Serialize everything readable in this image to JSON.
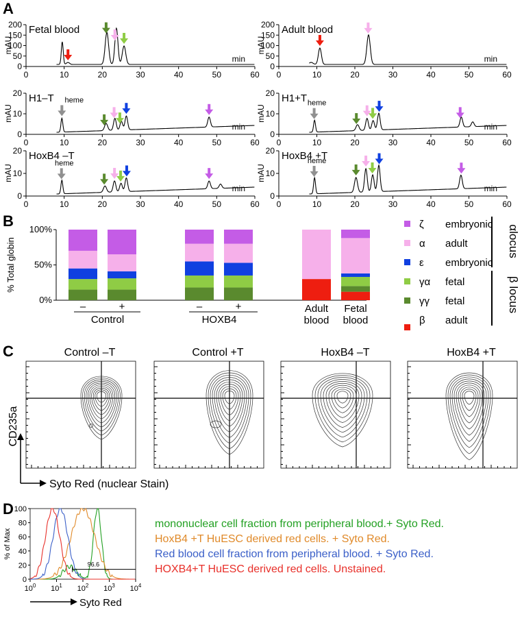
{
  "panels": {
    "A": "A",
    "B": "B",
    "C": "C",
    "D": "D"
  },
  "colors": {
    "zeta": "#c45ce6",
    "alpha": "#f6b0ea",
    "epsilon": "#1040e0",
    "gamma_a": "#8fcc45",
    "gamma_g": "#5a8a2e",
    "beta": "#ee1e10",
    "heme": "#909090",
    "legend_line": "#000000"
  },
  "hplc": {
    "ylabel": "mAU",
    "xlabel": "min",
    "x_ticks": [
      "0",
      "10",
      "20",
      "30",
      "40",
      "50",
      "60"
    ],
    "y_ticks_full": [
      "200",
      "150",
      "100",
      "50",
      "0"
    ],
    "y_ticks_short": [
      "20",
      "10",
      "0"
    ],
    "heme_label": "heme",
    "traces": [
      {
        "title": "Fetal blood",
        "heme": false,
        "peaks": [
          {
            "x": 9.5,
            "h": 0.55,
            "w": 0.25
          },
          {
            "x": 11,
            "h": 0.05,
            "w": 0.4
          },
          {
            "x": 21.2,
            "h": 0.78,
            "w": 0.45
          },
          {
            "x": 23.7,
            "h": 0.88,
            "w": 0.4
          },
          {
            "x": 25.7,
            "h": 0.45,
            "w": 0.45
          }
        ],
        "arrows": [
          {
            "x": 11,
            "c": "beta"
          },
          {
            "x": 21,
            "c": "gamma_g"
          },
          {
            "x": 23.3,
            "c": "alpha"
          },
          {
            "x": 25.7,
            "c": "gamma_a"
          }
        ]
      },
      {
        "title": "Adult blood",
        "heme": false,
        "peaks": [
          {
            "x": 8.5,
            "h": 0.05,
            "w": 0.5
          },
          {
            "x": 10.8,
            "h": 0.4,
            "w": 0.4
          },
          {
            "x": 23.6,
            "h": 0.72,
            "w": 0.45
          }
        ],
        "arrows": [
          {
            "x": 10.8,
            "c": "beta"
          },
          {
            "x": 23.5,
            "c": "alpha"
          }
        ]
      },
      {
        "title": "H1–T",
        "heme": true,
        "peaks": [
          {
            "x": 9.4,
            "h": 0.35,
            "w": 0.25
          },
          {
            "x": 21,
            "h": 0.18,
            "w": 0.4
          },
          {
            "x": 23.3,
            "h": 0.3,
            "w": 0.35
          },
          {
            "x": 25,
            "h": 0.22,
            "w": 0.35
          },
          {
            "x": 26.3,
            "h": 0.35,
            "w": 0.35
          },
          {
            "x": 48,
            "h": 0.25,
            "w": 0.35
          }
        ],
        "arrows": [
          {
            "x": 9.4,
            "c": "heme"
          },
          {
            "x": 20.5,
            "c": "gamma_g"
          },
          {
            "x": 23.1,
            "c": "alpha"
          },
          {
            "x": 24.6,
            "c": "gamma_a"
          },
          {
            "x": 26.3,
            "c": "epsilon"
          },
          {
            "x": 48,
            "c": "zeta"
          }
        ]
      },
      {
        "title": "H1+T",
        "heme": true,
        "peaks": [
          {
            "x": 9.4,
            "h": 0.3,
            "w": 0.25
          },
          {
            "x": 20.7,
            "h": 0.15,
            "w": 0.4
          },
          {
            "x": 23.2,
            "h": 0.3,
            "w": 0.35
          },
          {
            "x": 24.8,
            "h": 0.24,
            "w": 0.35
          },
          {
            "x": 26.3,
            "h": 0.42,
            "w": 0.35
          },
          {
            "x": 48,
            "h": 0.25,
            "w": 0.35
          },
          {
            "x": 51,
            "h": 0.12,
            "w": 0.35
          }
        ],
        "arrows": [
          {
            "x": 9.3,
            "c": "heme"
          },
          {
            "x": 20.4,
            "c": "gamma_g"
          },
          {
            "x": 23.2,
            "c": "alpha"
          },
          {
            "x": 24.7,
            "c": "gamma_a"
          },
          {
            "x": 26.4,
            "c": "epsilon"
          },
          {
            "x": 47.7,
            "c": "zeta"
          }
        ]
      },
      {
        "title": "HoxB4 –T",
        "heme": true,
        "peaks": [
          {
            "x": 9.4,
            "h": 0.32,
            "w": 0.25
          },
          {
            "x": 20.7,
            "h": 0.15,
            "w": 0.4
          },
          {
            "x": 23.2,
            "h": 0.26,
            "w": 0.35
          },
          {
            "x": 24.9,
            "h": 0.2,
            "w": 0.35
          },
          {
            "x": 26.3,
            "h": 0.32,
            "w": 0.35
          },
          {
            "x": 48,
            "h": 0.18,
            "w": 0.35
          },
          {
            "x": 51,
            "h": 0.1,
            "w": 0.35
          }
        ],
        "arrows": [
          {
            "x": 9.3,
            "c": "heme"
          },
          {
            "x": 20.5,
            "c": "gamma_g"
          },
          {
            "x": 23.2,
            "c": "alpha"
          },
          {
            "x": 24.8,
            "c": "gamma_a"
          },
          {
            "x": 26.4,
            "c": "epsilon"
          },
          {
            "x": 48,
            "c": "zeta"
          }
        ]
      },
      {
        "title": "HoxB4 +T",
        "heme": true,
        "peaks": [
          {
            "x": 9.4,
            "h": 0.38,
            "w": 0.25
          },
          {
            "x": 20.3,
            "h": 0.35,
            "w": 0.4
          },
          {
            "x": 22.9,
            "h": 0.55,
            "w": 0.35
          },
          {
            "x": 24.7,
            "h": 0.4,
            "w": 0.35
          },
          {
            "x": 26.3,
            "h": 0.62,
            "w": 0.35
          },
          {
            "x": 47.9,
            "h": 0.32,
            "w": 0.35
          }
        ],
        "arrows": [
          {
            "x": 9.3,
            "c": "heme"
          },
          {
            "x": 20.3,
            "c": "gamma_g"
          },
          {
            "x": 22.9,
            "c": "alpha"
          },
          {
            "x": 24.6,
            "c": "gamma_a"
          },
          {
            "x": 26.4,
            "c": "epsilon"
          },
          {
            "x": 48,
            "c": "zeta"
          }
        ]
      }
    ]
  },
  "chart_data": {
    "type": "bar",
    "ylabel": "% Total globin",
    "y_ticks": [
      "100%",
      "50%",
      "0%"
    ],
    "ylim": [
      0,
      100
    ],
    "categories": [
      "–",
      "+",
      "–",
      "+",
      "Adult blood",
      "Fetal blood"
    ],
    "groups": [
      {
        "label": "Control",
        "bars": [
          0,
          1
        ]
      },
      {
        "label": "HOXB4",
        "bars": [
          2,
          3
        ]
      },
      {
        "label": "Adult blood",
        "lines": [
          "Adult",
          "blood"
        ],
        "bars": [
          4
        ]
      },
      {
        "label": "Fetal blood",
        "lines": [
          "Fetal",
          "blood"
        ],
        "bars": [
          5
        ]
      }
    ],
    "series": [
      {
        "name": "β adult",
        "key": "beta",
        "values": [
          0,
          0,
          0,
          0,
          30,
          12
        ]
      },
      {
        "name": "γγ fetal",
        "key": "gamma_g",
        "values": [
          15,
          15,
          18,
          18,
          0,
          8
        ]
      },
      {
        "name": "γα fetal",
        "key": "gamma_a",
        "values": [
          15,
          16,
          17,
          17,
          0,
          13
        ]
      },
      {
        "name": "ε embryonic",
        "key": "epsilon",
        "values": [
          15,
          10,
          20,
          18,
          0,
          5
        ]
      },
      {
        "name": "α adult",
        "key": "alpha",
        "values": [
          25,
          24,
          25,
          27,
          70,
          50
        ]
      },
      {
        "name": "ζ embryonic",
        "key": "zeta",
        "values": [
          30,
          35,
          20,
          20,
          0,
          12
        ]
      }
    ],
    "legend": [
      {
        "sym": "ζ",
        "text": "embryonic",
        "key": "zeta"
      },
      {
        "sym": "α",
        "text": "adult",
        "key": "alpha"
      },
      {
        "sym": "ε",
        "text": "embryonic",
        "key": "epsilon"
      },
      {
        "sym": "γα",
        "text": "fetal",
        "key": "gamma_a"
      },
      {
        "sym": "γγ",
        "text": "fetal",
        "key": "gamma_g"
      },
      {
        "sym": "β",
        "text": "adult",
        "key": "beta"
      }
    ],
    "alpha_locus": "αlocus",
    "beta_locus": "β locus"
  },
  "flow": {
    "titles": [
      "Control –T",
      "Control +T",
      "HoxB4 –T",
      "HoxB4 +T"
    ],
    "ylabel": "CD235a",
    "xlabel": "Syto Red (nuclear Stain)"
  },
  "histogram": {
    "ylabel": "% of Max",
    "xlabel": "Syto Red",
    "y_ticks": [
      "100",
      "80",
      "60",
      "40",
      "20",
      "0"
    ],
    "x_ticks": [
      {
        "base": "10",
        "exp": "0"
      },
      {
        "base": "10",
        "exp": "1"
      },
      {
        "base": "10",
        "exp": "2"
      },
      {
        "base": "10",
        "exp": "3"
      },
      {
        "base": "10",
        "exp": "4"
      }
    ],
    "gate_label": "96.6",
    "series": [
      {
        "name": "mononuclear cell fraction from peripheral blood.+ Syto Red.",
        "color": "#22a022",
        "center": 2.55,
        "sd": 0.15,
        "bump": 1.5,
        "bumph": 0.18
      },
      {
        "name": "HoxB4 +T HuESC derived red cells. + Syto Red.",
        "color": "#e08a2a",
        "center": 2.0,
        "sd": 0.45,
        "bump": 0,
        "bumph": 0
      },
      {
        "name": "Red blood cell fraction  from peripheral blood. + Syto Red.",
        "color": "#3a5fc8",
        "center": 1.15,
        "sd": 0.28,
        "bump": 0,
        "bumph": 0
      },
      {
        "name": "HOXB4+T HuESC derived red cells. Unstained.",
        "color": "#e8302a",
        "center": 0.85,
        "sd": 0.27,
        "bump": 0,
        "bumph": 0
      }
    ]
  }
}
